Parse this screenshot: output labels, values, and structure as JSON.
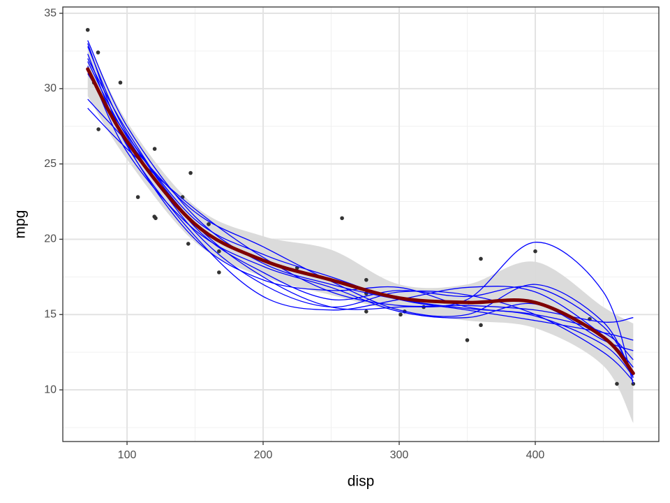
{
  "chart_data": {
    "type": "scatter",
    "x_label": "disp",
    "y_label": "mpg",
    "xlim": [
      52.8,
      490.8
    ],
    "ylim": [
      6.57,
      35.42
    ],
    "xticks": [
      100,
      200,
      300,
      400
    ],
    "yticks": [
      10,
      15,
      20,
      25,
      30,
      35
    ],
    "xminor": [
      150,
      250,
      350,
      450
    ],
    "yminor": [
      7.5,
      12.5,
      17.5,
      22.5,
      27.5,
      32.5
    ],
    "grid": true,
    "points": {
      "color": "#333333",
      "x": [
        160,
        160,
        108,
        258,
        360,
        225,
        360,
        146.7,
        140.8,
        167.6,
        167.6,
        275.8,
        275.8,
        275.8,
        472,
        460,
        440,
        78.7,
        75.7,
        71.1,
        120.1,
        318,
        304,
        350,
        400,
        79,
        120.3,
        95.1,
        351,
        145,
        301,
        121
      ],
      "values": [
        21,
        21,
        22.8,
        21.4,
        18.7,
        18.1,
        14.3,
        24.4,
        22.8,
        19.2,
        17.8,
        16.4,
        17.3,
        15.2,
        10.4,
        10.4,
        14.7,
        32.4,
        30.4,
        33.9,
        21.5,
        15.5,
        15.2,
        13.3,
        19.2,
        27.3,
        26,
        30.4,
        15.8,
        19.7,
        15,
        21.4
      ]
    },
    "curve_x": [
      71.1,
      100,
      150,
      200,
      250,
      300,
      350,
      400,
      450,
      472
    ],
    "band": {
      "color": "#d9d9d9",
      "lower": [
        29.5,
        25.3,
        19.8,
        17.5,
        16.3,
        15.2,
        14.6,
        14.1,
        11.6,
        7.8
      ],
      "upper": [
        33.2,
        27.8,
        22.2,
        20.2,
        19.3,
        17.0,
        17.0,
        18.5,
        15.5,
        14.4
      ]
    },
    "resample_color": "#0000ff",
    "resamples": [
      [
        33.2,
        27.5,
        21.5,
        18.4,
        17.0,
        16.0,
        15.4,
        15.0,
        13.8,
        12.0
      ],
      [
        32.8,
        27.0,
        21.0,
        17.5,
        15.5,
        15.5,
        16.0,
        19.8,
        16.5,
        10.4
      ],
      [
        29.3,
        26.5,
        21.8,
        19.5,
        17.2,
        15.3,
        15.0,
        17.0,
        14.5,
        10.8
      ],
      [
        28.7,
        26.0,
        22.0,
        18.8,
        16.5,
        15.6,
        15.6,
        15.3,
        14.5,
        14.8
      ],
      [
        31.8,
        26.8,
        20.5,
        17.0,
        15.5,
        16.5,
        16.3,
        15.0,
        12.5,
        10.6
      ],
      [
        32.3,
        26.2,
        20.2,
        16.2,
        15.3,
        16.0,
        16.8,
        16.5,
        13.6,
        11.5
      ],
      [
        31.0,
        26.9,
        21.3,
        19.0,
        17.5,
        16.0,
        15.3,
        14.6,
        13.8,
        13.3
      ],
      [
        32.0,
        27.2,
        20.8,
        17.8,
        16.0,
        16.6,
        16.2,
        16.8,
        14.2,
        11.0
      ],
      [
        31.5,
        25.8,
        20.6,
        18.2,
        16.8,
        15.2,
        14.8,
        15.7,
        13.3,
        12.6
      ],
      [
        33.0,
        26.3,
        20.0,
        17.3,
        16.6,
        16.8,
        15.5,
        14.9,
        13.0,
        10.9
      ]
    ],
    "fit": {
      "color": "#7f0000",
      "values": [
        31.3,
        26.5,
        21.0,
        18.6,
        17.3,
        16.1,
        15.8,
        15.8,
        13.5,
        11.1
      ]
    }
  }
}
